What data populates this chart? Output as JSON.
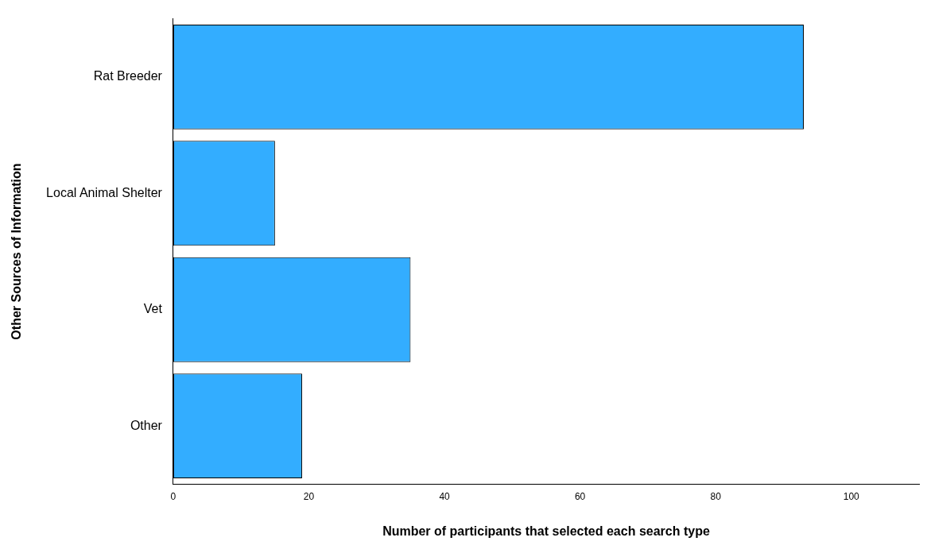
{
  "chart_data": {
    "type": "bar",
    "orientation": "horizontal",
    "xlabel": "Number of participants that selected each search type",
    "ylabel": "Other Sources of Information",
    "categories": [
      "Rat Breeder",
      "Local Animal Shelter",
      "Vet",
      "Other"
    ],
    "values": [
      93,
      15,
      35,
      19
    ],
    "color": "#33adff",
    "xlim": [
      0,
      110
    ],
    "xticks": [
      0,
      20,
      40,
      60,
      80,
      100
    ]
  }
}
